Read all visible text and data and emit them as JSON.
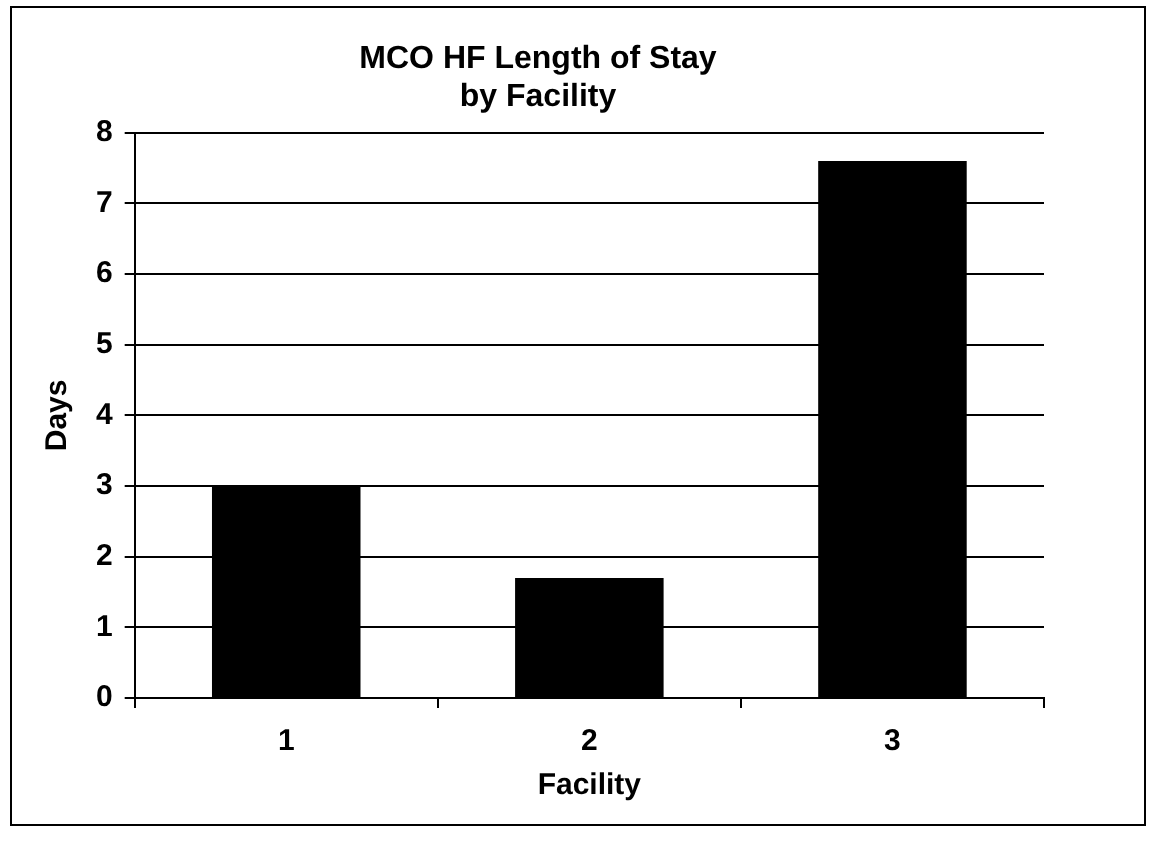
{
  "chart_data": {
    "type": "bar",
    "title": "MCO HF Length of Stay\nby Facility",
    "xlabel": "Facility",
    "ylabel": "Days",
    "categories": [
      "1",
      "2",
      "3"
    ],
    "values": [
      3,
      1.7,
      7.6
    ],
    "color": "#000000",
    "ylim": [
      0,
      8
    ],
    "yticks": [
      0,
      1,
      2,
      3,
      4,
      5,
      6,
      7,
      8
    ],
    "grid": "y",
    "legend": false
  }
}
